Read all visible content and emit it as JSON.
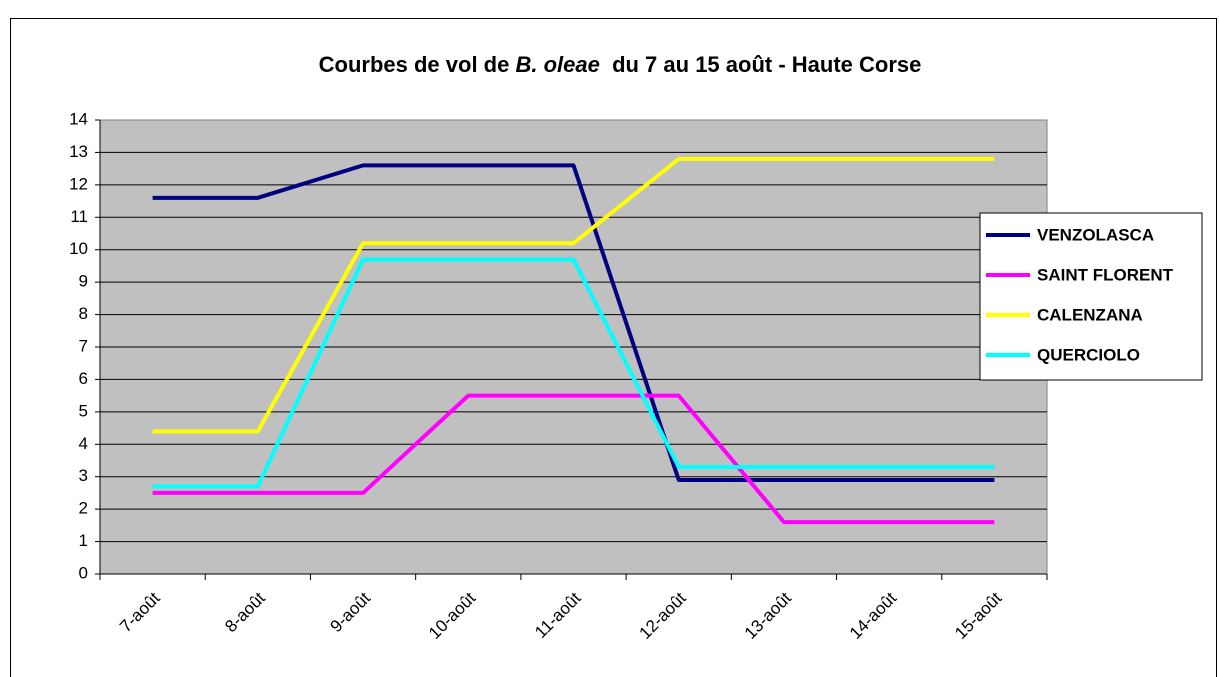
{
  "chart_data": {
    "type": "line",
    "title": [
      "Courbes de vol de ",
      "B. oleae",
      "  du 7 au 15 août - Haute Corse"
    ],
    "categories": [
      "7-août",
      "8-août",
      "9-août",
      "10-août",
      "11-août",
      "12-août",
      "13-août",
      "14-août",
      "15-août"
    ],
    "series": [
      {
        "name": "VENZOLASCA",
        "color": "#000080",
        "values": [
          11.6,
          11.6,
          12.6,
          12.6,
          12.6,
          2.9,
          2.9,
          2.9,
          2.9
        ]
      },
      {
        "name": "SAINT FLORENT",
        "color": "#ff00ff",
        "values": [
          2.5,
          2.5,
          2.5,
          5.5,
          5.5,
          5.5,
          1.6,
          1.6,
          1.6
        ]
      },
      {
        "name": "CALENZANA",
        "color": "#ffff00",
        "values": [
          4.4,
          4.4,
          10.2,
          10.2,
          10.2,
          12.8,
          12.8,
          12.8,
          12.8
        ]
      },
      {
        "name": "QUERCIOLO",
        "color": "#00ffff",
        "values": [
          2.7,
          2.7,
          9.7,
          9.7,
          9.7,
          3.3,
          3.3,
          3.3,
          3.3
        ]
      }
    ],
    "ylim": [
      0,
      14
    ],
    "yticks": [
      0,
      1,
      2,
      3,
      4,
      5,
      6,
      7,
      8,
      9,
      10,
      11,
      12,
      13,
      14
    ],
    "grid": true,
    "legend": "right"
  }
}
